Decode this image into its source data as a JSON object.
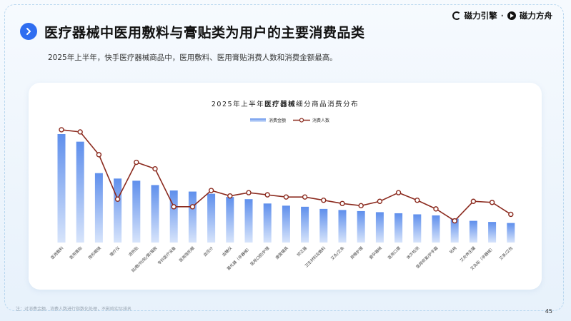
{
  "header": {
    "title": "医疗器械中医用敷料与膏贴类为用户的主要消费品类",
    "subtitle": "2025年上半年，快手医疗器械商品中，医用敷料、医用膏贴消费人数和消费金额最高。",
    "logo_left": "磁力引擎",
    "logo_separator": "·",
    "logo_right": "磁力方舟"
  },
  "footer": {
    "note": "注：对消费金额、消费人数进行指数化处理，不影响实际排名",
    "page_number": "45"
  },
  "colors": {
    "accent": "#2f6df0",
    "bar_top": "#5f8fec",
    "bar_bottom": "#d7e4fb",
    "line": "#8b2a1e",
    "marker_fill": "#ffffff"
  },
  "chart_data": {
    "type": "bar",
    "title_prefix": "2025年上半年",
    "title_bold": "医疗器械",
    "title_suffix": "细分商品消费分布",
    "legend_position": "top-center",
    "grid": false,
    "ylim": [
      0,
      100
    ],
    "categories": [
      "医用敷料",
      "医用膏贴",
      "隐形眼镜",
      "理疗仪",
      "退热贴",
      "贴/敷/剂/贴/膏/凝胶",
      "专科医疗设备",
      "医用隐形眼",
      "血压计",
      "血糖仪",
      "雾化器（非器械）",
      "医用口腔/护理",
      "康复辅具",
      "矫正器",
      "卫生材料及敷料",
      "艾灸/艾条",
      "颈椎护理",
      "避孕器械",
      "医用口罩",
      "体外检测",
      "医用修复/护手霜",
      "轮椅",
      "艾灸养生罐",
      "艾灸贴（非器械）",
      "艾条/艾柱"
    ],
    "series": [
      {
        "name": "消费金额",
        "kind": "bar",
        "values": [
          100,
          93,
          64,
          59,
          57,
          53,
          48,
          47,
          45,
          42,
          40,
          36,
          34,
          33,
          31,
          30,
          29,
          28,
          27,
          26,
          25,
          22,
          20,
          19,
          18
        ]
      },
      {
        "name": "消费人数",
        "kind": "line",
        "values": [
          104,
          102,
          81,
          40,
          74,
          68,
          33,
          33,
          48,
          43,
          46,
          44,
          42,
          42,
          39,
          36,
          34,
          38,
          46,
          39,
          31,
          20,
          38,
          37,
          26
        ]
      }
    ]
  }
}
